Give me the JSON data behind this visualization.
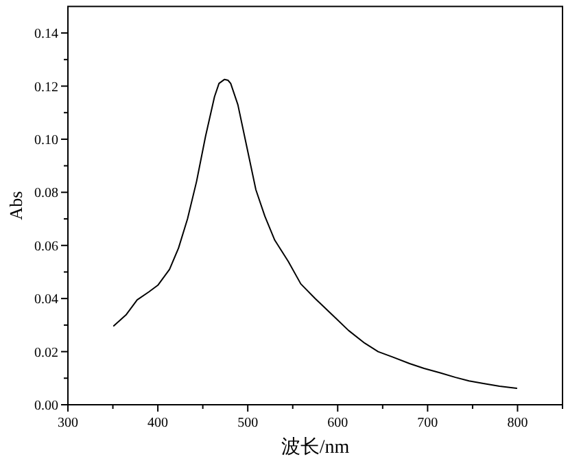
{
  "chart_data": {
    "type": "line",
    "xlabel": "波长/nm",
    "ylabel": "Abs",
    "xlim": [
      300,
      850
    ],
    "ylim": [
      0,
      0.15
    ],
    "xticks": [
      300,
      {
        "value": 350,
        "label": null
      },
      400,
      {
        "value": 450,
        "label": null
      },
      500,
      {
        "value": 550,
        "label": null
      },
      600,
      {
        "value": 650,
        "label": null
      },
      700,
      {
        "value": 750,
        "label": null
      },
      800,
      {
        "value": 850,
        "label": null
      }
    ],
    "yticks": [
      {
        "value": 0,
        "label": "0.00"
      },
      {
        "value": 0.01,
        "label": null
      },
      {
        "value": 0.02,
        "label": "0.02"
      },
      {
        "value": 0.03,
        "label": null
      },
      {
        "value": 0.04,
        "label": "0.04"
      },
      {
        "value": 0.05,
        "label": null
      },
      {
        "value": 0.06,
        "label": "0.06"
      },
      {
        "value": 0.07,
        "label": null
      },
      {
        "value": 0.08,
        "label": "0.08"
      },
      {
        "value": 0.09,
        "label": null
      },
      {
        "value": 0.1,
        "label": "0.10"
      },
      {
        "value": 0.11,
        "label": null
      },
      {
        "value": 0.12,
        "label": "0.12"
      },
      {
        "value": 0.13,
        "label": null
      },
      {
        "value": 0.14,
        "label": "0.14"
      }
    ],
    "grid": false,
    "line_style": "solid",
    "series": [
      {
        "color": "#000000",
        "x": [
          351,
          365,
          377,
          390,
          400,
          413,
          423,
          433,
          443,
          453,
          463,
          468,
          474,
          478,
          481,
          489,
          499,
          509,
          519,
          530,
          545,
          559,
          575,
          595,
          612,
          630,
          645,
          661,
          680,
          696,
          714,
          731,
          746,
          762,
          780,
          799
        ],
        "values": [
          0.0297,
          0.034,
          0.0395,
          0.0425,
          0.045,
          0.051,
          0.059,
          0.07,
          0.084,
          0.101,
          0.116,
          0.121,
          0.1225,
          0.1222,
          0.121,
          0.113,
          0.097,
          0.081,
          0.071,
          0.062,
          0.054,
          0.0455,
          0.04,
          0.0335,
          0.028,
          0.0232,
          0.02,
          0.018,
          0.0155,
          0.0137,
          0.012,
          0.0103,
          0.009,
          0.008,
          0.007,
          0.0062
        ]
      }
    ]
  }
}
